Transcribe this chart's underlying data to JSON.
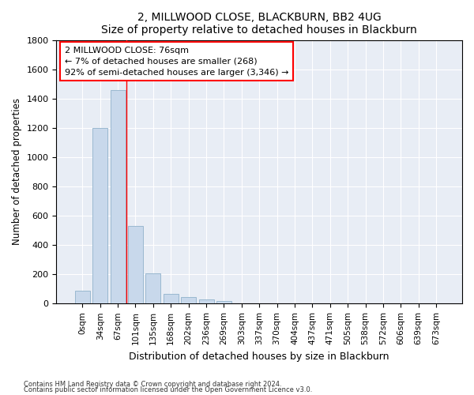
{
  "title": "2, MILLWOOD CLOSE, BLACKBURN, BB2 4UG",
  "subtitle": "Size of property relative to detached houses in Blackburn",
  "xlabel": "Distribution of detached houses by size in Blackburn",
  "ylabel": "Number of detached properties",
  "bar_color": "#c8d8eb",
  "bar_edge_color": "#9ab8d0",
  "background_color": "#e8edf5",
  "grid_color": "#ffffff",
  "categories": [
    "0sqm",
    "34sqm",
    "67sqm",
    "101sqm",
    "135sqm",
    "168sqm",
    "202sqm",
    "236sqm",
    "269sqm",
    "303sqm",
    "337sqm",
    "370sqm",
    "404sqm",
    "437sqm",
    "471sqm",
    "505sqm",
    "538sqm",
    "572sqm",
    "606sqm",
    "639sqm",
    "673sqm"
  ],
  "values": [
    90,
    1200,
    1460,
    530,
    205,
    65,
    47,
    30,
    20,
    0,
    0,
    0,
    0,
    0,
    0,
    0,
    0,
    0,
    0,
    0,
    0
  ],
  "ylim": [
    0,
    1800
  ],
  "yticks": [
    0,
    200,
    400,
    600,
    800,
    1000,
    1200,
    1400,
    1600,
    1800
  ],
  "red_line_x": 2.5,
  "annotation_title": "2 MILLWOOD CLOSE: 76sqm",
  "annotation_line1": "← 7% of detached houses are smaller (268)",
  "annotation_line2": "92% of semi-detached houses are larger (3,346) →",
  "footnote1": "Contains HM Land Registry data © Crown copyright and database right 2024.",
  "footnote2": "Contains public sector information licensed under the Open Government Licence v3.0."
}
